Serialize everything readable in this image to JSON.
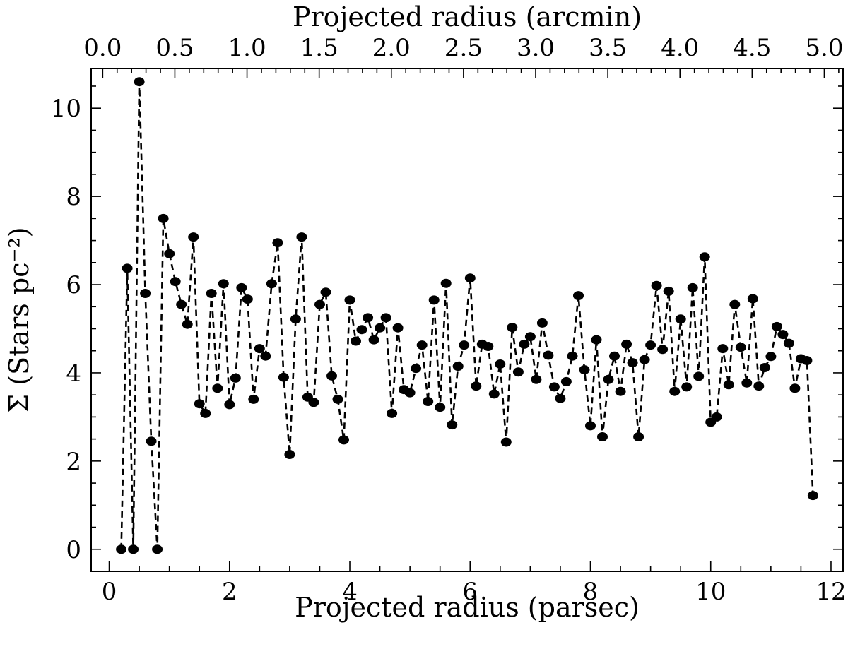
{
  "chart_data": {
    "type": "line",
    "xlabel": "Projected radius (parsec)",
    "x2label": "Projected radius (arcmin)",
    "ylabel": "Σ (Stars pc⁻²)",
    "xlim": [
      -0.3,
      12.2
    ],
    "ylim": [
      -0.5,
      10.9
    ],
    "x2lim": [
      -0.08,
      5.13
    ],
    "xticks": [
      0,
      2,
      4,
      6,
      8,
      10,
      12
    ],
    "yticks": [
      0,
      2,
      4,
      6,
      8,
      10
    ],
    "x2ticks": [
      "0.0",
      "0.5",
      "1.0",
      "1.5",
      "2.0",
      "2.5",
      "3.0",
      "3.5",
      "4.0",
      "4.5",
      "5.0"
    ],
    "grid": false,
    "marker": "circle",
    "line_style": "dashed",
    "color": "#000000",
    "series": [
      {
        "x": [
          0.2,
          0.3,
          0.4,
          0.5,
          0.6,
          0.7,
          0.8,
          0.9,
          1.0,
          1.1,
          1.2,
          1.3,
          1.4,
          1.5,
          1.6,
          1.7,
          1.8,
          1.9,
          2.0,
          2.1,
          2.2,
          2.3,
          2.4,
          2.5,
          2.6,
          2.7,
          2.8,
          2.9,
          3.0,
          3.1,
          3.2,
          3.3,
          3.4,
          3.5,
          3.6,
          3.7,
          3.8,
          3.9,
          4.0,
          4.1,
          4.2,
          4.3,
          4.4,
          4.5,
          4.6,
          4.7,
          4.8,
          4.9,
          5.0,
          5.1,
          5.2,
          5.3,
          5.4,
          5.5,
          5.6,
          5.7,
          5.8,
          5.9,
          6.0,
          6.1,
          6.2,
          6.3,
          6.4,
          6.5,
          6.6,
          6.7,
          6.8,
          6.9,
          7.0,
          7.1,
          7.2,
          7.3,
          7.4,
          7.5,
          7.6,
          7.7,
          7.8,
          7.9,
          8.0,
          8.1,
          8.2,
          8.3,
          8.4,
          8.5,
          8.6,
          8.7,
          8.8,
          8.9,
          9.0,
          9.1,
          9.2,
          9.3,
          9.4,
          9.5,
          9.6,
          9.7,
          9.8,
          9.9,
          10.0,
          10.1,
          10.2,
          10.3,
          10.4,
          10.5,
          10.6,
          10.7,
          10.8,
          10.9,
          11.0,
          11.1,
          11.2,
          11.3,
          11.4,
          11.5,
          11.6,
          11.7
        ],
        "y": [
          0.0,
          6.37,
          0.0,
          10.6,
          5.8,
          2.45,
          0.0,
          7.5,
          6.7,
          6.07,
          5.55,
          5.1,
          7.08,
          3.3,
          3.08,
          5.8,
          3.65,
          6.02,
          3.28,
          3.88,
          5.93,
          5.67,
          3.4,
          4.55,
          4.38,
          6.02,
          6.95,
          3.9,
          2.15,
          5.22,
          7.08,
          3.45,
          3.33,
          5.55,
          5.83,
          3.93,
          3.4,
          2.48,
          5.65,
          4.72,
          4.98,
          5.25,
          4.75,
          5.02,
          5.25,
          3.08,
          5.02,
          3.62,
          3.55,
          4.1,
          4.63,
          3.35,
          5.65,
          3.22,
          6.03,
          2.82,
          4.15,
          4.63,
          6.15,
          3.7,
          4.65,
          4.6,
          3.52,
          4.2,
          2.43,
          5.03,
          4.02,
          4.65,
          4.82,
          3.85,
          5.13,
          4.4,
          3.68,
          3.42,
          3.8,
          4.38,
          5.75,
          4.07,
          2.8,
          4.75,
          2.55,
          3.85,
          4.38,
          3.58,
          4.65,
          4.23,
          2.55,
          4.3,
          4.63,
          5.98,
          4.53,
          5.85,
          3.58,
          5.22,
          3.68,
          5.93,
          3.92,
          6.63,
          2.88,
          3.0,
          4.55,
          3.73,
          5.55,
          4.58,
          3.77,
          5.68,
          3.7,
          4.12,
          4.37,
          5.05,
          4.87,
          4.67,
          3.65,
          4.32,
          4.28,
          1.22
        ]
      }
    ]
  }
}
